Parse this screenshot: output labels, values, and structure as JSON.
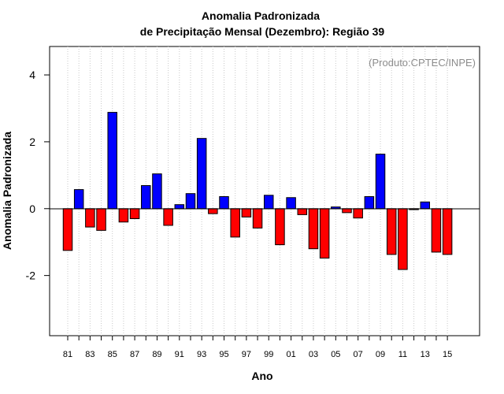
{
  "chart_data": {
    "type": "bar",
    "title": "Anomalia Padronizada",
    "subtitle": "de Precipitação Mensal (Dezembro): Região 39",
    "source": "(Produto:CPTEC/INPE)",
    "xlabel": "Ano",
    "ylabel": "Anomalia Padronizada",
    "ylim": [
      -3.8,
      4.85
    ],
    "yticks": [
      -2,
      0,
      2,
      4
    ],
    "yticklabels": [
      "-2",
      "0",
      "2",
      "4"
    ],
    "xticklabels": [
      "81",
      "83",
      "85",
      "87",
      "89",
      "91",
      "93",
      "95",
      "97",
      "99",
      "01",
      "03",
      "05",
      "07",
      "09",
      "11",
      "13",
      "15"
    ],
    "grid": "vertical dotted",
    "positive_color": "#0000ff",
    "negative_color": "#ff0000",
    "categories": [
      "1981",
      "1982",
      "1983",
      "1984",
      "1985",
      "1986",
      "1987",
      "1988",
      "1989",
      "1990",
      "1991",
      "1992",
      "1993",
      "1994",
      "1995",
      "1996",
      "1997",
      "1998",
      "1999",
      "2000",
      "2001",
      "2002",
      "2003",
      "2004",
      "2005",
      "2006",
      "2007",
      "2008",
      "2009",
      "2010",
      "2011",
      "2012",
      "2013",
      "2014",
      "2015"
    ],
    "values": [
      -1.25,
      0.57,
      -0.55,
      -0.65,
      2.88,
      -0.4,
      -0.3,
      0.69,
      1.04,
      -0.5,
      0.12,
      0.45,
      2.1,
      -0.15,
      0.36,
      -0.85,
      -0.25,
      -0.58,
      0.4,
      -1.08,
      0.33,
      -0.18,
      -1.2,
      -1.48,
      0.05,
      -0.12,
      -0.28,
      0.36,
      1.63,
      -1.37,
      -1.82,
      -0.03,
      0.2,
      -1.3,
      -1.37
    ]
  }
}
